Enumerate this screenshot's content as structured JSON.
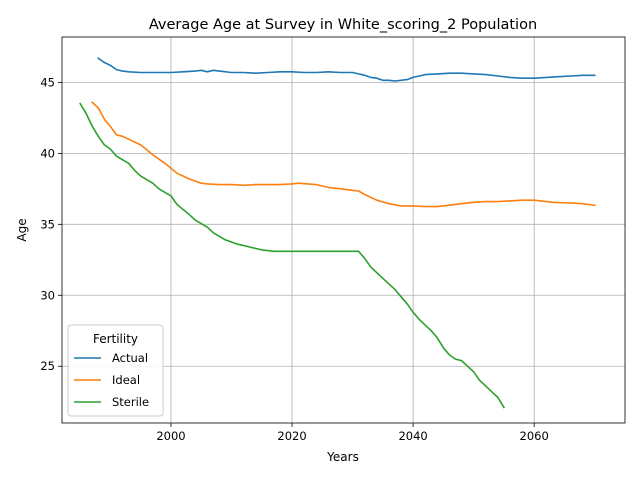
{
  "chart_data": {
    "type": "line",
    "title": "Average Age at Survey in White_scoring_2 Population",
    "xlabel": "Years",
    "ylabel": "Age",
    "xlim": [
      1982,
      2075
    ],
    "ylim": [
      21,
      48.2
    ],
    "xticks": [
      2000,
      2020,
      2040,
      2060
    ],
    "yticks": [
      25,
      30,
      35,
      40,
      45
    ],
    "grid": true,
    "legend": {
      "title": "Fertility",
      "placement": "lower-left"
    },
    "series": [
      {
        "name": "Actual",
        "color": "#1f77b4",
        "x": [
          1988,
          1989,
          1990,
          1991,
          1992,
          1993,
          1995,
          1998,
          2000,
          2002,
          2004,
          2005,
          2006,
          2007,
          2008,
          2010,
          2012,
          2014,
          2016,
          2018,
          2020,
          2022,
          2024,
          2026,
          2028,
          2030,
          2031,
          2032,
          2033,
          2034,
          2035,
          2036,
          2037,
          2038,
          2039,
          2040,
          2042,
          2044,
          2046,
          2048,
          2050,
          2052,
          2054,
          2056,
          2058,
          2060,
          2062,
          2064,
          2066,
          2068,
          2070
        ],
        "values": [
          46.7,
          46.4,
          46.2,
          45.9,
          45.8,
          45.75,
          45.7,
          45.7,
          45.7,
          45.75,
          45.8,
          45.85,
          45.75,
          45.85,
          45.8,
          45.7,
          45.7,
          45.65,
          45.7,
          45.75,
          45.75,
          45.7,
          45.7,
          45.75,
          45.7,
          45.7,
          45.6,
          45.5,
          45.35,
          45.3,
          45.15,
          45.15,
          45.1,
          45.15,
          45.2,
          45.35,
          45.55,
          45.6,
          45.65,
          45.65,
          45.6,
          45.55,
          45.45,
          45.35,
          45.3,
          45.3,
          45.35,
          45.4,
          45.45,
          45.5,
          45.5
        ]
      },
      {
        "name": "Ideal",
        "color": "#ff7f0e",
        "x": [
          1987,
          1988,
          1989,
          1990,
          1991,
          1992,
          1993,
          1995,
          1997,
          1999,
          2001,
          2003,
          2005,
          2006,
          2008,
          2010,
          2012,
          2014,
          2016,
          2018,
          2020,
          2021,
          2024,
          2026,
          2028,
          2030,
          2031,
          2032,
          2034,
          2036,
          2038,
          2040,
          2042,
          2044,
          2046,
          2048,
          2050,
          2052,
          2054,
          2056,
          2058,
          2060,
          2062,
          2063,
          2066,
          2068,
          2069,
          2070
        ],
        "values": [
          43.6,
          43.2,
          42.4,
          41.9,
          41.3,
          41.2,
          41.0,
          40.6,
          39.9,
          39.3,
          38.6,
          38.2,
          37.9,
          37.85,
          37.8,
          37.8,
          37.75,
          37.8,
          37.8,
          37.8,
          37.85,
          37.9,
          37.8,
          37.6,
          37.5,
          37.4,
          37.35,
          37.1,
          36.7,
          36.45,
          36.3,
          36.3,
          36.25,
          36.25,
          36.35,
          36.45,
          36.55,
          36.6,
          36.6,
          36.65,
          36.7,
          36.7,
          36.6,
          36.55,
          36.5,
          36.45,
          36.4,
          36.35
        ]
      },
      {
        "name": "Sterile",
        "color": "#2ca02c",
        "x": [
          1985,
          1986,
          1987,
          1988,
          1989,
          1990,
          1991,
          1993,
          1994,
          1995,
          1997,
          1998,
          2000,
          2001,
          2003,
          2004,
          2006,
          2007,
          2009,
          2011,
          2013,
          2015,
          2017,
          2019,
          2021,
          2023,
          2025,
          2027,
          2029,
          2031,
          2032,
          2033,
          2035,
          2037,
          2038,
          2039,
          2040,
          2041,
          2042,
          2043,
          2044,
          2045,
          2046,
          2047,
          2048,
          2049,
          2050,
          2051,
          2052,
          2053,
          2054,
          2055
        ],
        "values": [
          43.5,
          42.8,
          41.9,
          41.2,
          40.6,
          40.3,
          39.8,
          39.3,
          38.8,
          38.4,
          37.9,
          37.5,
          37.0,
          36.4,
          35.7,
          35.3,
          34.8,
          34.4,
          33.9,
          33.6,
          33.4,
          33.2,
          33.1,
          33.1,
          33.1,
          33.1,
          33.1,
          33.1,
          33.1,
          33.1,
          32.6,
          32.0,
          31.2,
          30.4,
          29.9,
          29.4,
          28.8,
          28.3,
          27.9,
          27.5,
          27.0,
          26.3,
          25.8,
          25.5,
          25.4,
          25.0,
          24.6,
          24.0,
          23.6,
          23.2,
          22.8,
          22.1
        ]
      }
    ]
  }
}
